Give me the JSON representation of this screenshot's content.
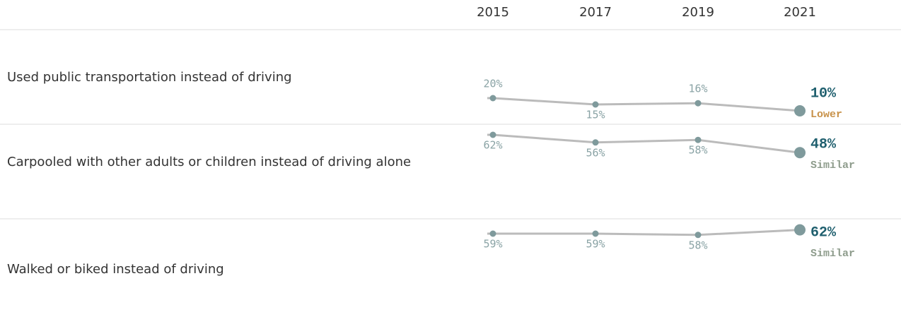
{
  "chart_data": {
    "type": "sparkline-table",
    "categories": [
      "2015",
      "2017",
      "2019",
      "2021"
    ],
    "line_color": "#bbbbbb",
    "point_color": "#7f9a9c",
    "label_color": "#8aa3a5",
    "final_color": "#1f5f6e",
    "rows": [
      {
        "label": "Used public transportation instead of driving",
        "values": [
          20,
          15,
          16,
          10
        ],
        "value_labels": [
          "20%",
          "15%",
          "16%",
          "10%"
        ],
        "status": "Lower",
        "status_color": "#c8924a"
      },
      {
        "label": "Carpooled with other adults or children instead of driving alone",
        "values": [
          62,
          56,
          58,
          48
        ],
        "value_labels": [
          "62%",
          "56%",
          "58%",
          "48%"
        ],
        "status": "Similar",
        "status_color": "#8e9c8c"
      },
      {
        "label": "Walked or biked instead of driving",
        "values": [
          59,
          59,
          58,
          62
        ],
        "value_labels": [
          "59%",
          "59%",
          "58%",
          "62%"
        ],
        "status": "Similar",
        "status_color": "#8e9c8c"
      }
    ]
  }
}
